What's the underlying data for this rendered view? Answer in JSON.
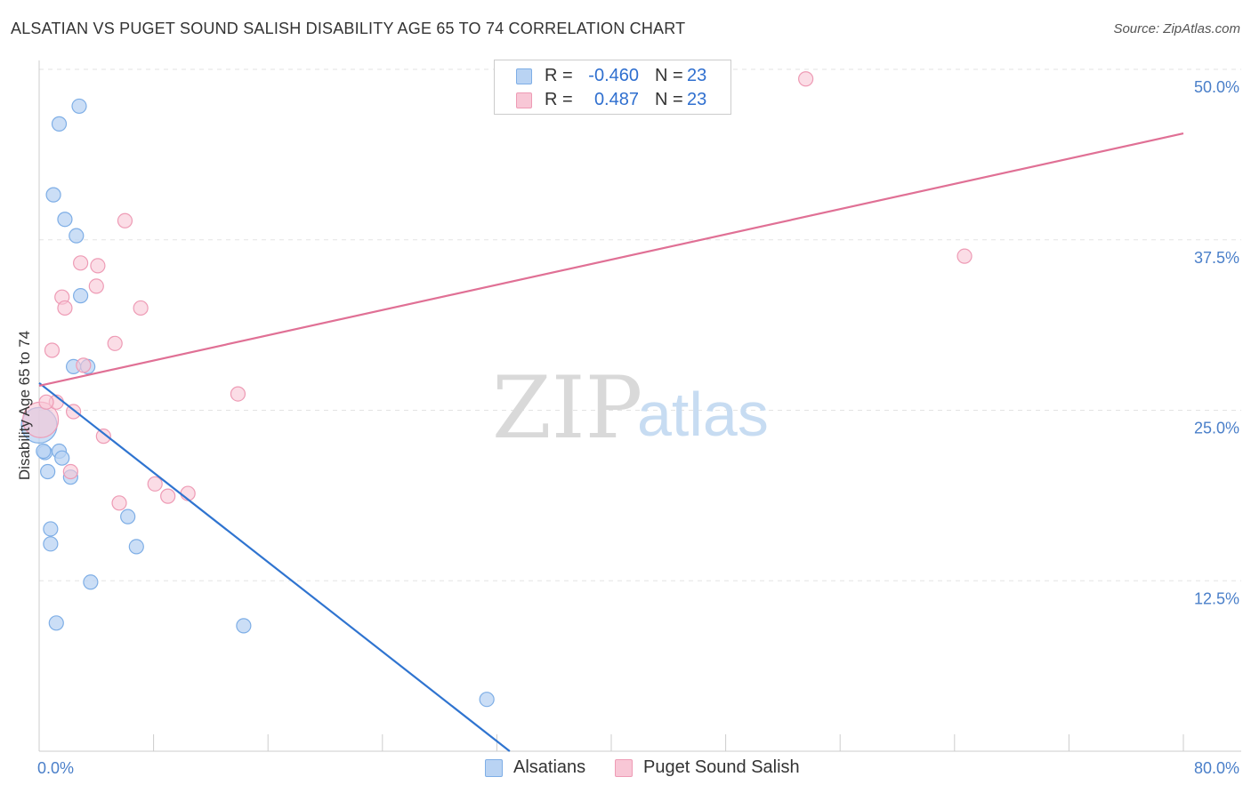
{
  "title": "ALSATIAN VS PUGET SOUND SALISH DISABILITY AGE 65 TO 74 CORRELATION CHART",
  "source": "Source: ZipAtlas.com",
  "watermark": {
    "zip": "ZIP",
    "atlas": "atlas"
  },
  "legend": {
    "rows": [
      {
        "r_label": "R =",
        "r_value": "-0.460",
        "n_label": "N =",
        "n_value": "23"
      },
      {
        "r_label": "R =",
        "r_value": "0.487",
        "n_label": "N =",
        "n_value": "23"
      }
    ]
  },
  "colors": {
    "alsatians_fill": "#b9d3f3",
    "alsatians_stroke": "#7eaee6",
    "alsatians_line": "#2f74d0",
    "salish_fill": "#f8c7d6",
    "salish_stroke": "#ee9bb5",
    "salish_line": "#e07095",
    "grid": "#e3e3e3",
    "tick_label": "#4a7fc9"
  },
  "chart_data": {
    "type": "scatter",
    "title": "ALSATIAN VS PUGET SOUND SALISH DISABILITY AGE 65 TO 74 CORRELATION CHART",
    "xlabel": "",
    "ylabel": "Disability Age 65 to 74",
    "xlim": [
      0,
      80
    ],
    "ylim": [
      0,
      50
    ],
    "x_tick_labels": [
      "0.0%",
      "80.0%"
    ],
    "y_ticks": [
      12.5,
      25.0,
      37.5,
      50.0
    ],
    "y_tick_labels": [
      "12.5%",
      "25.0%",
      "37.5%",
      "50.0%"
    ],
    "grid": true,
    "legend_position": "bottom",
    "series": [
      {
        "name": "Alsatians",
        "points": [
          {
            "x": 0.0,
            "y": 23.9,
            "big": true
          },
          {
            "x": 1.4,
            "y": 46.0
          },
          {
            "x": 2.8,
            "y": 47.3
          },
          {
            "x": 1.0,
            "y": 40.8
          },
          {
            "x": 1.8,
            "y": 39.0
          },
          {
            "x": 2.6,
            "y": 37.8
          },
          {
            "x": 2.9,
            "y": 33.4
          },
          {
            "x": 2.4,
            "y": 28.2
          },
          {
            "x": 3.4,
            "y": 28.2
          },
          {
            "x": 0.4,
            "y": 21.9
          },
          {
            "x": 1.4,
            "y": 22.0
          },
          {
            "x": 1.6,
            "y": 21.5
          },
          {
            "x": 0.6,
            "y": 20.5
          },
          {
            "x": 2.2,
            "y": 20.1
          },
          {
            "x": 6.2,
            "y": 17.2
          },
          {
            "x": 0.8,
            "y": 16.3
          },
          {
            "x": 0.8,
            "y": 15.2
          },
          {
            "x": 6.8,
            "y": 15.0
          },
          {
            "x": 3.6,
            "y": 12.4
          },
          {
            "x": 1.2,
            "y": 9.4
          },
          {
            "x": 14.3,
            "y": 9.2
          },
          {
            "x": 31.3,
            "y": 3.8
          },
          {
            "x": 0.3,
            "y": 22.0
          }
        ],
        "trend": {
          "x0": 0,
          "y0": 27.0,
          "x1": 32.9,
          "y1": 0
        }
      },
      {
        "name": "Puget Sound Salish",
        "points": [
          {
            "x": 0.1,
            "y": 24.3,
            "big": true
          },
          {
            "x": 53.6,
            "y": 49.3
          },
          {
            "x": 6.0,
            "y": 38.9
          },
          {
            "x": 64.7,
            "y": 36.3
          },
          {
            "x": 2.9,
            "y": 35.8
          },
          {
            "x": 4.1,
            "y": 35.6
          },
          {
            "x": 4.0,
            "y": 34.1
          },
          {
            "x": 1.6,
            "y": 33.3
          },
          {
            "x": 1.8,
            "y": 32.5
          },
          {
            "x": 7.1,
            "y": 32.5
          },
          {
            "x": 5.3,
            "y": 29.9
          },
          {
            "x": 0.9,
            "y": 29.4
          },
          {
            "x": 3.1,
            "y": 28.3
          },
          {
            "x": 13.9,
            "y": 26.2
          },
          {
            "x": 1.2,
            "y": 25.6
          },
          {
            "x": 2.4,
            "y": 24.9
          },
          {
            "x": 4.5,
            "y": 23.1
          },
          {
            "x": 2.2,
            "y": 20.5
          },
          {
            "x": 8.1,
            "y": 19.6
          },
          {
            "x": 9.0,
            "y": 18.7
          },
          {
            "x": 10.4,
            "y": 18.9
          },
          {
            "x": 5.6,
            "y": 18.2
          },
          {
            "x": 0.5,
            "y": 25.6
          }
        ],
        "trend": {
          "x0": 0,
          "y0": 26.8,
          "x1": 80,
          "y1": 45.3
        }
      }
    ]
  }
}
